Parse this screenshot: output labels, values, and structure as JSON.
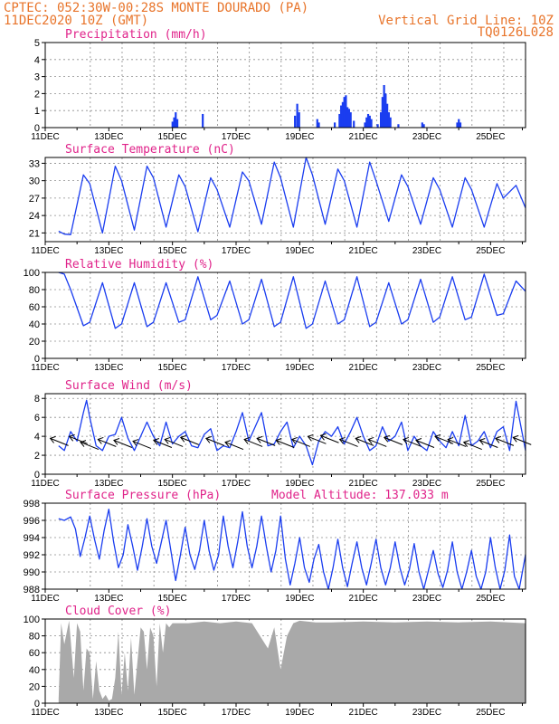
{
  "header": {
    "line1": "CPTEC:  052:30W-00:28S  MONTE DOURADO (PA)",
    "line2_left": "11DEC2020 10Z (GMT)",
    "line2_right": "Vertical Grid Line: 10Z",
    "line3_right": "TQ0126L028"
  },
  "colors": {
    "header": "#e8742a",
    "title": "#e0238a",
    "line": "#1a3df0",
    "bar": "#1a3df0",
    "cloud": "#a9a9a9",
    "grid": "#8c8c8c"
  },
  "x_dates": [
    "11DEC",
    "13DEC",
    "15DEC",
    "17DEC",
    "19DEC",
    "21DEC",
    "23DEC",
    "25DEC"
  ],
  "chart_data": [
    {
      "type": "bar",
      "id": "precip",
      "title": "Precipitation (mm/h)",
      "ylim": [
        0,
        5
      ],
      "yticks": [
        0,
        1,
        2,
        3,
        4,
        5
      ],
      "bars": [
        [
          15.0,
          0.35
        ],
        [
          15.05,
          0.6
        ],
        [
          15.1,
          0.9
        ],
        [
          15.15,
          0.5
        ],
        [
          15.95,
          0.8
        ],
        [
          18.85,
          0.7
        ],
        [
          18.92,
          1.4
        ],
        [
          18.98,
          0.9
        ],
        [
          19.55,
          0.5
        ],
        [
          19.6,
          0.3
        ],
        [
          20.1,
          0.3
        ],
        [
          20.25,
          0.8
        ],
        [
          20.3,
          1.3
        ],
        [
          20.35,
          1.5
        ],
        [
          20.4,
          1.8
        ],
        [
          20.45,
          1.9
        ],
        [
          20.5,
          1.2
        ],
        [
          20.55,
          1.1
        ],
        [
          20.6,
          0.9
        ],
        [
          20.7,
          0.4
        ],
        [
          21.05,
          0.3
        ],
        [
          21.1,
          0.6
        ],
        [
          21.15,
          0.8
        ],
        [
          21.2,
          0.7
        ],
        [
          21.25,
          0.5
        ],
        [
          21.45,
          0.2
        ],
        [
          21.55,
          0.9
        ],
        [
          21.6,
          1.8
        ],
        [
          21.65,
          2.5
        ],
        [
          21.7,
          2.0
        ],
        [
          21.75,
          1.4
        ],
        [
          21.8,
          0.9
        ],
        [
          21.85,
          0.6
        ],
        [
          22.1,
          0.2
        ],
        [
          22.85,
          0.3
        ],
        [
          22.9,
          0.2
        ],
        [
          23.95,
          0.3
        ],
        [
          24.0,
          0.5
        ],
        [
          24.05,
          0.3
        ]
      ]
    },
    {
      "type": "line",
      "id": "temp",
      "title": "Surface Temperature (nC)",
      "ylim": [
        19.5,
        34
      ],
      "yticks": [
        21,
        24,
        27,
        30,
        33
      ],
      "x": [
        11.42,
        11.6,
        11.8,
        12.2,
        12.4,
        12.8,
        13.2,
        13.4,
        13.8,
        14.2,
        14.4,
        14.8,
        15.2,
        15.4,
        15.8,
        16.2,
        16.4,
        16.8,
        17.2,
        17.4,
        17.8,
        18.2,
        18.4,
        18.8,
        19.2,
        19.4,
        19.8,
        20.2,
        20.4,
        20.8,
        21.2,
        21.4,
        21.8,
        22.2,
        22.4,
        22.8,
        23.2,
        23.4,
        23.8,
        24.2,
        24.4,
        24.8,
        25.2,
        25.4,
        25.8,
        26.1
      ],
      "y": [
        21.3,
        20.8,
        20.7,
        31.0,
        29.5,
        21.0,
        32.5,
        30.0,
        21.5,
        32.5,
        30.5,
        22.0,
        31.0,
        29.0,
        21.2,
        30.5,
        28.5,
        22.0,
        31.5,
        30.0,
        22.5,
        33.2,
        30.5,
        22.0,
        34.0,
        31.0,
        22.5,
        32.0,
        30.0,
        22.0,
        33.2,
        30.0,
        23.0,
        31.0,
        29.0,
        22.5,
        30.5,
        28.5,
        22.0,
        30.5,
        28.5,
        22.0,
        29.5,
        27.0,
        29.2,
        25.3
      ]
    },
    {
      "type": "line",
      "id": "rh",
      "title": "Relative Humidity (%)",
      "ylim": [
        0,
        100
      ],
      "yticks": [
        0,
        20,
        40,
        60,
        80,
        100
      ],
      "x": [
        11.42,
        11.6,
        11.8,
        12.2,
        12.4,
        12.8,
        13.2,
        13.4,
        13.8,
        14.2,
        14.4,
        14.8,
        15.2,
        15.4,
        15.8,
        16.2,
        16.4,
        16.8,
        17.2,
        17.4,
        17.8,
        18.2,
        18.4,
        18.8,
        19.2,
        19.4,
        19.8,
        20.2,
        20.4,
        20.8,
        21.2,
        21.4,
        21.8,
        22.2,
        22.4,
        22.8,
        23.2,
        23.4,
        23.8,
        24.2,
        24.4,
        24.8,
        25.2,
        25.4,
        25.8,
        26.1
      ],
      "y": [
        100,
        98,
        80,
        38,
        42,
        88,
        35,
        40,
        88,
        37,
        42,
        88,
        42,
        45,
        95,
        45,
        50,
        90,
        40,
        45,
        92,
        37,
        42,
        95,
        35,
        40,
        90,
        40,
        45,
        95,
        37,
        42,
        88,
        40,
        45,
        92,
        42,
        48,
        95,
        45,
        48,
        98,
        50,
        52,
        90,
        78
      ]
    },
    {
      "type": "line",
      "id": "wind",
      "title": "Surface Wind (m/s)",
      "ylim": [
        0,
        8.5
      ],
      "yticks": [
        0,
        2,
        4,
        6,
        8
      ],
      "x": [
        11.42,
        11.6,
        11.8,
        12.0,
        12.2,
        12.3,
        12.4,
        12.6,
        12.8,
        13.0,
        13.2,
        13.4,
        13.6,
        13.8,
        14.0,
        14.2,
        14.4,
        14.6,
        14.8,
        15.0,
        15.2,
        15.4,
        15.6,
        15.8,
        16.0,
        16.2,
        16.4,
        16.6,
        16.8,
        17.0,
        17.2,
        17.4,
        17.6,
        17.8,
        18.0,
        18.2,
        18.4,
        18.6,
        18.8,
        19.0,
        19.2,
        19.4,
        19.6,
        19.8,
        20.0,
        20.2,
        20.4,
        20.6,
        20.8,
        21.0,
        21.2,
        21.4,
        21.6,
        21.8,
        22.0,
        22.2,
        22.4,
        22.6,
        22.8,
        23.0,
        23.2,
        23.4,
        23.6,
        23.8,
        24.0,
        24.2,
        24.4,
        24.6,
        24.8,
        25.0,
        25.2,
        25.4,
        25.6,
        25.8,
        26.1
      ],
      "y": [
        3.0,
        2.5,
        4.5,
        3.5,
        6.5,
        7.8,
        6.0,
        3.0,
        2.5,
        4.0,
        4.2,
        6.0,
        3.8,
        2.5,
        4.0,
        5.5,
        4.0,
        3.0,
        5.5,
        3.2,
        4.0,
        4.5,
        3.0,
        2.8,
        4.2,
        4.8,
        2.5,
        3.0,
        2.8,
        4.5,
        6.5,
        3.5,
        5.0,
        6.5,
        3.0,
        3.2,
        4.5,
        5.5,
        2.8,
        4.0,
        3.0,
        1.0,
        3.5,
        4.5,
        4.0,
        5.0,
        3.2,
        4.5,
        6.0,
        4.0,
        2.5,
        3.0,
        5.0,
        3.5,
        4.0,
        5.5,
        2.5,
        4.0,
        3.0,
        2.5,
        4.5,
        3.5,
        2.8,
        4.5,
        3.0,
        6.2,
        3.0,
        3.5,
        4.5,
        2.8,
        4.5,
        5.0,
        2.5,
        7.7,
        2.5
      ],
      "barbs": [
        [
          11.5,
          3.4
        ],
        [
          12.1,
          3.6
        ],
        [
          12.45,
          3.0
        ],
        [
          13.0,
          3.3
        ],
        [
          13.5,
          3.2
        ],
        [
          14.1,
          3.1
        ],
        [
          14.75,
          3.2
        ],
        [
          15.1,
          3.3
        ],
        [
          15.6,
          3.5
        ],
        [
          16.4,
          3.4
        ],
        [
          17.0,
          3.0
        ],
        [
          17.6,
          3.3
        ],
        [
          18.0,
          3.4
        ],
        [
          18.6,
          3.2
        ],
        [
          19.1,
          3.3
        ],
        [
          19.6,
          3.6
        ],
        [
          20.0,
          3.7
        ],
        [
          20.6,
          3.3
        ],
        [
          21.1,
          3.4
        ],
        [
          21.5,
          3.3
        ],
        [
          22.0,
          3.5
        ],
        [
          22.6,
          3.3
        ],
        [
          23.0,
          3.2
        ],
        [
          23.6,
          3.6
        ],
        [
          24.0,
          3.3
        ],
        [
          24.5,
          3.0
        ],
        [
          25.0,
          3.2
        ],
        [
          25.5,
          3.4
        ],
        [
          26.05,
          3.5
        ]
      ]
    },
    {
      "type": "line",
      "id": "pres",
      "title": "Surface Pressure (hPa)",
      "annotation": "Model Altitude: 137.033 m",
      "ylim": [
        988,
        998
      ],
      "yticks": [
        988,
        990,
        992,
        994,
        996,
        998
      ],
      "x": [
        11.42,
        11.6,
        11.8,
        11.95,
        12.1,
        12.25,
        12.4,
        12.55,
        12.7,
        12.85,
        13.0,
        13.15,
        13.3,
        13.45,
        13.6,
        13.75,
        13.9,
        14.05,
        14.2,
        14.35,
        14.5,
        14.65,
        14.8,
        14.95,
        15.1,
        15.25,
        15.4,
        15.55,
        15.7,
        15.85,
        16.0,
        16.15,
        16.3,
        16.45,
        16.6,
        16.75,
        16.9,
        17.05,
        17.2,
        17.35,
        17.5,
        17.65,
        17.8,
        17.95,
        18.1,
        18.25,
        18.4,
        18.55,
        18.7,
        18.85,
        19.0,
        19.15,
        19.3,
        19.45,
        19.6,
        19.75,
        19.9,
        20.05,
        20.2,
        20.35,
        20.5,
        20.65,
        20.8,
        20.95,
        21.1,
        21.25,
        21.4,
        21.55,
        21.7,
        21.85,
        22.0,
        22.15,
        22.3,
        22.45,
        22.6,
        22.75,
        22.9,
        23.05,
        23.2,
        23.35,
        23.5,
        23.65,
        23.8,
        23.95,
        24.1,
        24.25,
        24.4,
        24.55,
        24.7,
        24.85,
        25.0,
        25.15,
        25.3,
        25.45,
        25.6,
        25.75,
        25.9,
        26.1
      ],
      "y": [
        996.2,
        996.0,
        996.4,
        995.0,
        991.8,
        994.0,
        996.5,
        993.8,
        991.5,
        994.8,
        997.3,
        993.5,
        990.5,
        992.0,
        995.5,
        993.0,
        990.2,
        993.0,
        996.2,
        993.0,
        991.0,
        993.5,
        996.0,
        992.5,
        989.0,
        992.0,
        995.2,
        992.0,
        990.3,
        992.5,
        996.0,
        992.5,
        990.2,
        992.0,
        996.5,
        993.0,
        990.5,
        993.5,
        997.0,
        993.0,
        990.5,
        993.0,
        996.5,
        993.0,
        990.0,
        992.5,
        996.5,
        991.5,
        988.5,
        991.0,
        994.0,
        990.5,
        988.8,
        991.5,
        993.2,
        990.0,
        988.0,
        990.5,
        993.8,
        990.5,
        988.3,
        991.0,
        993.5,
        990.5,
        988.5,
        991.0,
        993.8,
        990.5,
        988.5,
        990.5,
        993.5,
        990.5,
        988.5,
        990.3,
        993.3,
        990.0,
        988.0,
        990.2,
        992.5,
        989.8,
        988.2,
        990.2,
        993.5,
        990.0,
        988.0,
        990.0,
        992.5,
        989.5,
        988.0,
        990.0,
        994.0,
        990.5,
        988.0,
        990.2,
        994.3,
        989.5,
        988.0,
        992.0
      ]
    },
    {
      "type": "area",
      "id": "cloud",
      "title": "Cloud Cover (%)",
      "ylim": [
        0,
        100
      ],
      "yticks": [
        0,
        20,
        40,
        60,
        80,
        100
      ],
      "x": [
        11.42,
        11.5,
        11.6,
        11.75,
        11.9,
        12.0,
        12.1,
        12.2,
        12.3,
        12.4,
        12.5,
        12.6,
        12.7,
        12.8,
        12.9,
        13.0,
        13.1,
        13.2,
        13.3,
        13.4,
        13.5,
        13.6,
        13.7,
        13.8,
        13.9,
        14.0,
        14.1,
        14.2,
        14.3,
        14.4,
        14.5,
        14.6,
        14.7,
        14.8,
        14.9,
        15.0,
        15.2,
        15.5,
        16.0,
        16.5,
        17.0,
        17.5,
        18.0,
        18.2,
        18.4,
        18.6,
        18.8,
        19.0,
        19.5,
        20.0,
        21.0,
        22.0,
        23.0,
        24.0,
        25.0,
        26.1
      ],
      "y": [
        5,
        95,
        70,
        98,
        30,
        95,
        85,
        15,
        65,
        60,
        5,
        50,
        15,
        5,
        10,
        3,
        5,
        30,
        85,
        10,
        60,
        15,
        78,
        10,
        50,
        90,
        85,
        40,
        90,
        80,
        20,
        95,
        60,
        95,
        90,
        95,
        95,
        95,
        97,
        95,
        97,
        95,
        65,
        90,
        40,
        80,
        95,
        98,
        96,
        96,
        97,
        96,
        97,
        96,
        97,
        95
      ]
    }
  ]
}
